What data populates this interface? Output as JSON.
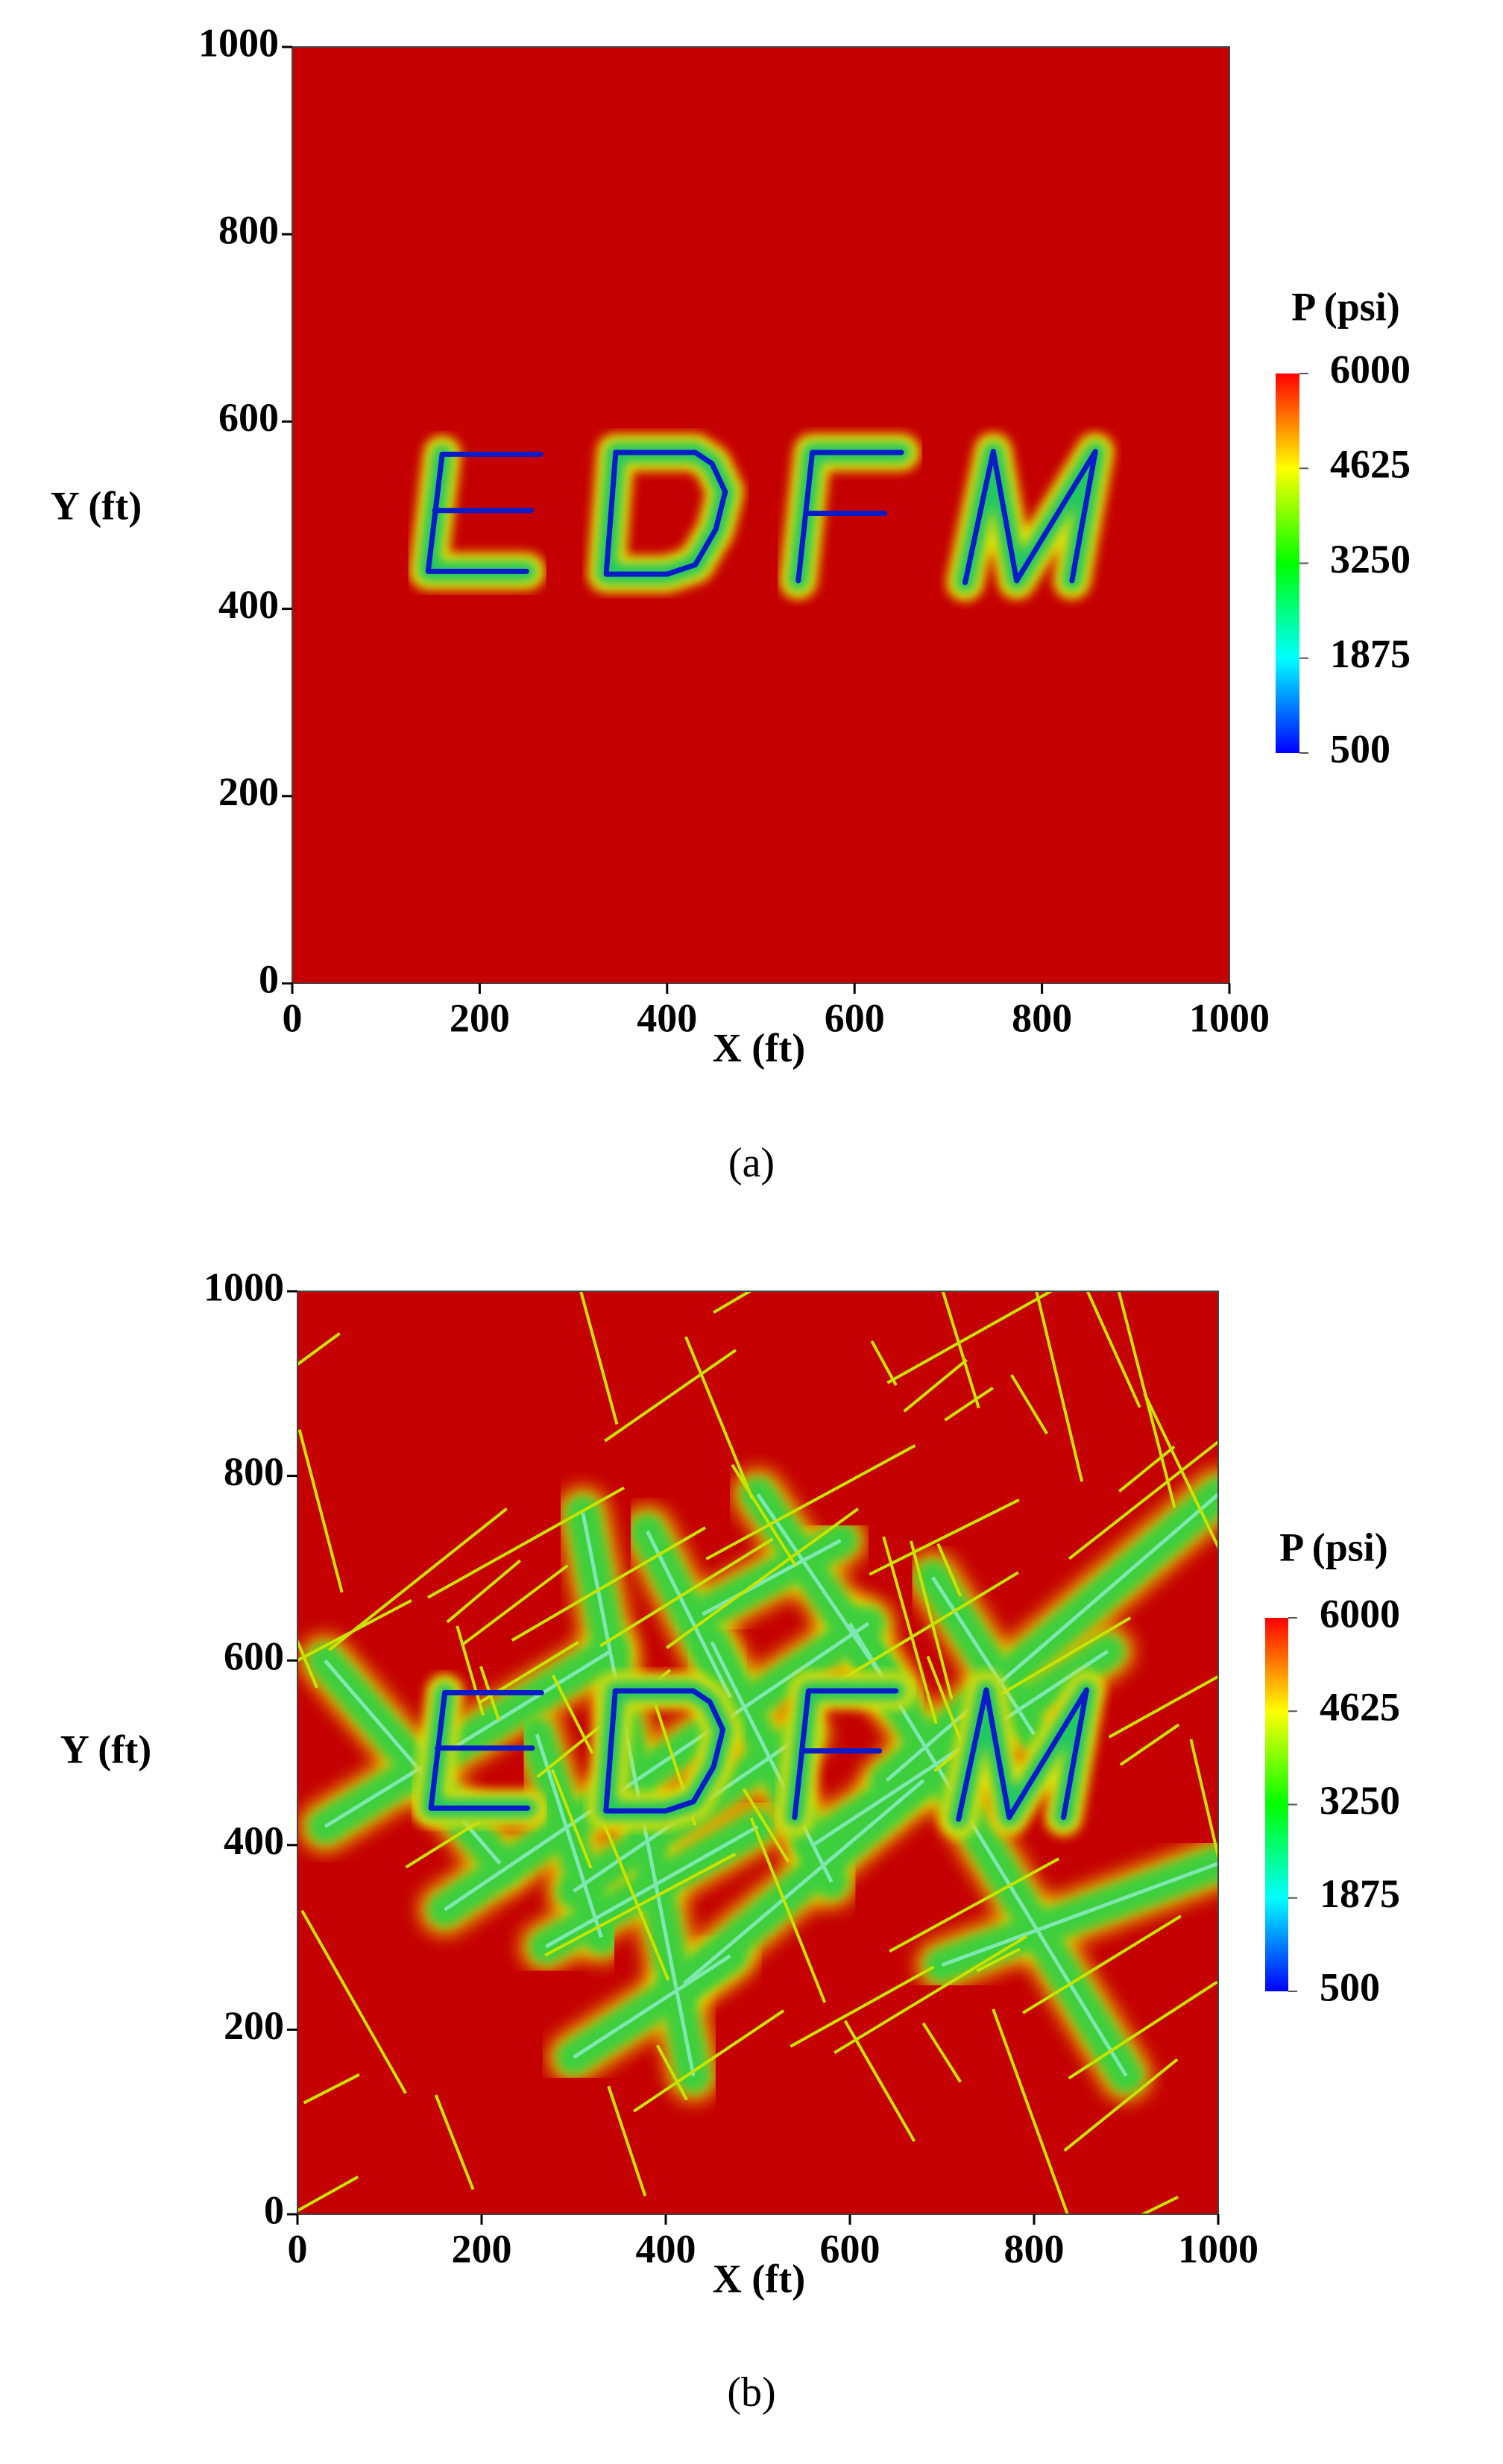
{
  "chart_data": [
    {
      "type": "field",
      "caption": "(a)",
      "xlabel": "X (ft)",
      "ylabel": "Y (ft)",
      "xlim": [
        0,
        1000
      ],
      "ylim": [
        0,
        1000
      ],
      "xticks": [
        0,
        200,
        400,
        600,
        800,
        1000
      ],
      "yticks": [
        0,
        200,
        400,
        600,
        800,
        1000
      ],
      "colorbar_label": "P (psi)",
      "clim": [
        500,
        6000
      ],
      "cticks": [
        500,
        1875,
        3250,
        4625,
        6000
      ],
      "colormap": [
        "#0000ff",
        "#00ffff",
        "#00ff00",
        "#ffff00",
        "#ff0000"
      ],
      "background": "#c40000"
    },
    {
      "type": "field",
      "caption": "(b)",
      "xlabel": "X (ft)",
      "ylabel": "Y (ft)",
      "xlim": [
        0,
        1000
      ],
      "ylim": [
        0,
        1000
      ],
      "xticks": [
        0,
        200,
        400,
        600,
        800,
        1000
      ],
      "yticks": [
        0,
        200,
        400,
        600,
        800,
        1000
      ],
      "colorbar_label": "P (psi)",
      "clim": [
        500,
        6000
      ],
      "cticks": [
        500,
        1875,
        3250,
        4625,
        6000
      ],
      "colormap": [
        "#0000ff",
        "#00ffff",
        "#00ff00",
        "#ffff00",
        "#ff0000"
      ],
      "background": "#c40000"
    }
  ]
}
